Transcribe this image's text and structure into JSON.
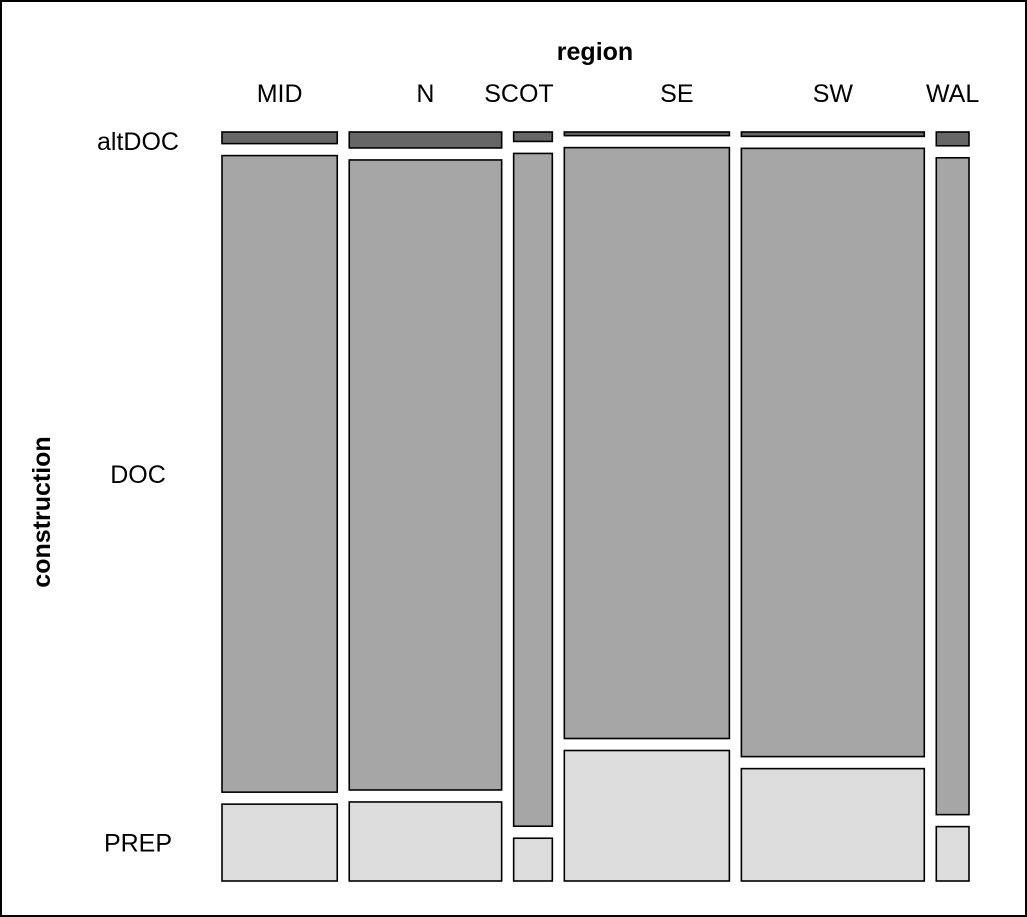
{
  "chart_data": {
    "type": "mosaic",
    "x_variable": "region",
    "y_variable": "construction",
    "categories": [
      "MID",
      "N",
      "SCOT",
      "SE",
      "SW",
      "WAL"
    ],
    "levels": [
      "altDOC",
      "DOC",
      "PREP"
    ],
    "column_proportions": [
      0.155,
      0.205,
      0.052,
      0.222,
      0.246,
      0.044
    ],
    "series": [
      {
        "values": [
          0.016,
          0.022,
          0.013,
          0.005,
          0.006,
          0.019
        ]
      },
      {
        "values": [
          0.878,
          0.869,
          0.928,
          0.815,
          0.839,
          0.906
        ]
      },
      {
        "values": [
          0.106,
          0.109,
          0.059,
          0.18,
          0.155,
          0.075
        ]
      }
    ],
    "colors": {
      "altDOC": "#666666",
      "DOC": "#a6a6a6",
      "PREP": "#dcdcdc"
    },
    "grid": false,
    "legend": "none"
  }
}
